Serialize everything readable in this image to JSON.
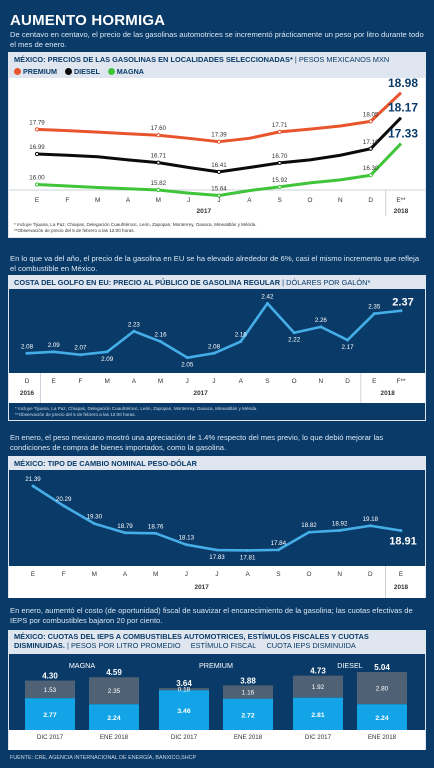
{
  "page_title": "AUMENTO HORMIGA",
  "intro": "De centavo en centavo, el precio de las gasolinas automotrices se incrementó prácticamente un peso por litro durante todo el mes de enero.",
  "text2": "En lo que va del año, el precio de la gasolina en EU se ha elevado alrededor de 6%, casi el mismo incremento que refleja el combustible en México.",
  "text3": "En enero, el peso mexicano mostró una apreciación de 1.4% respecto del mes previo, lo que debió mejorar las condiciones de compra de bienes importados, como la gasolina.",
  "text4": "En enero, aumentó el costo (de oportunidad) fiscal de suavizar el encarecimiento de la gasolina; las cuotas efectivas de IEPS por combustibles bajaron 20 por ciento.",
  "source": "FUENTE: CRE, AGENCIA INTERNACIONAL DE ENERGÍA, BANXICO,SHCP",
  "colors": {
    "premium": "#e8552d",
    "diesel": "#0b0b0b",
    "magna": "#3fc43a",
    "line": "#45aee8",
    "dark": "#0f2a44",
    "mid": "#4f6275",
    "light": "#12a4e6"
  },
  "chart_data": [
    {
      "type": "line",
      "title": "MÉXICO: PRECIOS DE LAS GASOLINAS EN LOCALIDADES SELECCIONADAS*",
      "unit": "PESOS MEXICANOS MXN",
      "categories": [
        "E",
        "F",
        "M",
        "A",
        "M",
        "J",
        "J",
        "A",
        "S",
        "O",
        "N",
        "D",
        "E**"
      ],
      "year_labels": [
        "2017",
        "2018"
      ],
      "series": [
        {
          "name": "PREMIUM",
          "values": [
            17.79,
            17.75,
            17.7,
            17.65,
            17.6,
            17.5,
            17.39,
            17.5,
            17.71,
            17.8,
            17.9,
            18.05,
            18.98
          ],
          "labels": [
            17.79,
            null,
            null,
            null,
            17.6,
            null,
            17.39,
            null,
            17.71,
            null,
            null,
            18.05,
            18.98
          ]
        },
        {
          "name": "DIESEL",
          "values": [
            16.99,
            16.95,
            16.9,
            16.8,
            16.71,
            16.55,
            16.41,
            16.55,
            16.7,
            16.8,
            16.95,
            17.16,
            18.17
          ],
          "labels": [
            16.99,
            null,
            null,
            null,
            16.71,
            null,
            16.41,
            null,
            16.7,
            null,
            null,
            17.16,
            18.17
          ]
        },
        {
          "name": "MAGNA",
          "values": [
            16.0,
            15.95,
            15.9,
            15.86,
            15.82,
            15.72,
            15.64,
            15.8,
            15.92,
            16.05,
            16.15,
            16.3,
            17.33
          ],
          "labels": [
            16.0,
            null,
            null,
            null,
            15.82,
            null,
            15.64,
            null,
            15.92,
            null,
            null,
            16.3,
            17.33
          ]
        }
      ],
      "notes": [
        "* Incluye Tijuana, La Paz, Chiapas, Delegación Cuauhtémoc, León, Zapopan, Monterrey, Oaxaca, Mineatitlán y Mérida.",
        "**Observación de precio del 5 de febrero a las 12:00 horas."
      ]
    },
    {
      "type": "line",
      "title": "COSTA DEL GOLFO EN EU: PRECIO AL PÚBLICO DE GASOLINA REGULAR",
      "unit": "DÓLARES POR GALÓN*",
      "categories": [
        "D",
        "E",
        "F",
        "M",
        "A",
        "M",
        "J",
        "J",
        "A",
        "S",
        "O",
        "N",
        "D",
        "E",
        "F**"
      ],
      "year_labels": [
        "2016",
        "2017",
        "2018"
      ],
      "values": [
        2.08,
        2.09,
        2.07,
        2.09,
        2.23,
        2.16,
        2.05,
        2.08,
        2.16,
        2.42,
        2.22,
        2.26,
        2.17,
        2.35,
        2.37
      ],
      "notes": [
        "* Incluye Tijuana, La Paz, Chiapas, Delegación Cuauhtémoc, León, Zapopan, Monterrey, Oaxaca, Mineatitlán y Mérida.",
        "**Observación de precio del 5 de febrero a las 12:00 horas."
      ]
    },
    {
      "type": "line",
      "title": "MÉXICO: TIPO DE CAMBIO NOMINAL PESO-DÓLAR",
      "categories": [
        "E",
        "F",
        "M",
        "A",
        "M",
        "J",
        "J",
        "A",
        "S",
        "O",
        "N",
        "D",
        "E"
      ],
      "year_labels": [
        "2017",
        "2018"
      ],
      "values": [
        21.39,
        20.29,
        19.3,
        18.79,
        18.76,
        18.13,
        17.83,
        17.81,
        17.84,
        18.82,
        18.92,
        19.18,
        18.91
      ]
    },
    {
      "type": "bar",
      "title": "MÉXICO: CUOTAS DEL IEPS A COMBUSTIBLES AUTOMOTRICES, ESTÍMULOS FISCALES Y CUOTAS DISMINUIDAS.",
      "legend": [
        "PESOS POR LITRO PROMEDIO",
        "ESTÍMULO FISCAL",
        "CUOTA IEPS DISMINUIDA"
      ],
      "groups": [
        {
          "name": "MAGNA",
          "bars": [
            {
              "label": "DIC 2017",
              "total": 4.3,
              "estimulo": 1.53,
              "cuota": 2.77
            },
            {
              "label": "ENE 2018",
              "total": 4.59,
              "estimulo": 2.35,
              "cuota": 2.24
            }
          ]
        },
        {
          "name": "PREMIUM",
          "bars": [
            {
              "label": "DIC 2017",
              "total": 3.64,
              "estimulo": 0.18,
              "cuota": 3.46
            },
            {
              "label": "ENE 2018",
              "total": 3.88,
              "estimulo": 1.16,
              "cuota": 2.72
            }
          ]
        },
        {
          "name": "DIESEL",
          "bars": [
            {
              "label": "DIC 2017",
              "total": 4.73,
              "estimulo": 1.92,
              "cuota": 2.81
            },
            {
              "label": "ENE 2018",
              "total": 5.04,
              "estimulo": 2.8,
              "cuota": 2.24
            }
          ]
        }
      ]
    }
  ]
}
